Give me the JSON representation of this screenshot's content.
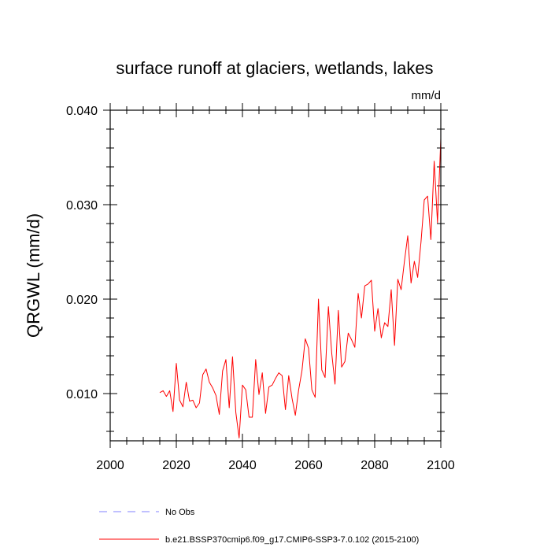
{
  "chart_data": {
    "type": "line",
    "title": "surface runoff at glaciers, wetlands, lakes",
    "units": "mm/d",
    "ylabel": "QRGWL  (mm/d)",
    "xlabel": "",
    "xlim": [
      2000,
      2100
    ],
    "ylim": [
      0.005,
      0.04
    ],
    "x_ticks": [
      2000,
      2020,
      2040,
      2060,
      2080,
      2100
    ],
    "x_tick_labels": [
      "2000",
      "2020",
      "2040",
      "2060",
      "2080",
      "2100"
    ],
    "y_ticks": [
      0.01,
      0.02,
      0.03,
      0.04
    ],
    "y_tick_labels": [
      "0.010",
      "0.020",
      "0.030",
      "0.040"
    ],
    "grid": false,
    "legend_placement": "bottom-left",
    "legend": [
      {
        "label": "No Obs",
        "color": "#8080ff",
        "style": "dashed"
      },
      {
        "label": "b.e21.BSSP370cmip6.f09_g17.CMIP6-SSP3-7.0.102 (2015-2100)",
        "color": "#ff0000",
        "style": "solid"
      }
    ],
    "series": [
      {
        "name": "b.e21.BSSP370cmip6.f09_g17.CMIP6-SSP3-7.0.102 (2015-2100)",
        "color": "#ff0000",
        "x": [
          2015,
          2016,
          2017,
          2018,
          2019,
          2020,
          2021,
          2022,
          2023,
          2024,
          2025,
          2026,
          2027,
          2028,
          2029,
          2030,
          2031,
          2032,
          2033,
          2034,
          2035,
          2036,
          2037,
          2038,
          2039,
          2040,
          2041,
          2042,
          2043,
          2044,
          2045,
          2046,
          2047,
          2048,
          2049,
          2050,
          2051,
          2052,
          2053,
          2054,
          2055,
          2056,
          2057,
          2058,
          2059,
          2060,
          2061,
          2062,
          2063,
          2064,
          2065,
          2066,
          2067,
          2068,
          2069,
          2070,
          2071,
          2072,
          2073,
          2074,
          2075,
          2076,
          2077,
          2078,
          2079,
          2080,
          2081,
          2082,
          2083,
          2084,
          2085,
          2086,
          2087,
          2088,
          2089,
          2090,
          2091,
          2092,
          2093,
          2094,
          2095,
          2096,
          2097,
          2098,
          2099,
          2100
        ],
        "y": [
          0.0101,
          0.0103,
          0.0097,
          0.0103,
          0.0081,
          0.0132,
          0.0093,
          0.0086,
          0.0112,
          0.0092,
          0.0093,
          0.0085,
          0.009,
          0.012,
          0.0126,
          0.0112,
          0.0106,
          0.0098,
          0.0078,
          0.0124,
          0.0136,
          0.0085,
          0.0139,
          0.008,
          0.0053,
          0.0109,
          0.0104,
          0.0075,
          0.0075,
          0.0136,
          0.0099,
          0.0122,
          0.0079,
          0.0107,
          0.0109,
          0.0116,
          0.0122,
          0.0119,
          0.0083,
          0.0119,
          0.0095,
          0.0077,
          0.0104,
          0.0124,
          0.0158,
          0.0148,
          0.0104,
          0.0096,
          0.02,
          0.0125,
          0.0117,
          0.0192,
          0.0143,
          0.011,
          0.0188,
          0.0128,
          0.0134,
          0.0164,
          0.0157,
          0.0149,
          0.0206,
          0.018,
          0.0214,
          0.0216,
          0.022,
          0.0166,
          0.019,
          0.0159,
          0.0175,
          0.0171,
          0.021,
          0.0151,
          0.0221,
          0.021,
          0.024,
          0.0267,
          0.0217,
          0.024,
          0.0223,
          0.026,
          0.0305,
          0.0309,
          0.0263,
          0.0346,
          0.0281,
          0.037
        ]
      }
    ]
  }
}
